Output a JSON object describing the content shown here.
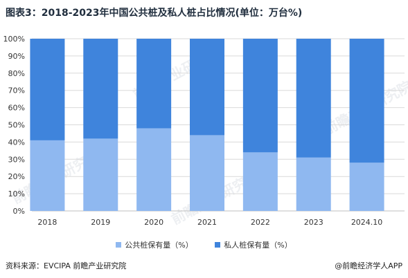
{
  "title": "图表3：2018-2023年中国公共桩及私人桩占比情况(单位：万台%)",
  "watermark_text": "前瞻产业研究院",
  "source": "资料来源：EVCIPA 前瞻产业研究院",
  "brand": "@前瞻经济学人APP",
  "colors": {
    "public": "#8fb8f0",
    "private": "#3f84dc",
    "grid": "#d9d9d9",
    "axis": "#bfbfbf",
    "text": "#333333"
  },
  "chart_data": {
    "type": "bar",
    "stacked": true,
    "categories": [
      "2018",
      "2019",
      "2020",
      "2021",
      "2022",
      "2023",
      "2024.10"
    ],
    "series": [
      {
        "name": "公共桩保有量（%）",
        "values": [
          41,
          42,
          48,
          44,
          34,
          31,
          28
        ]
      },
      {
        "name": "私人桩保有量（%）",
        "values": [
          59,
          58,
          52,
          56,
          66,
          69,
          72
        ]
      }
    ],
    "ylim": [
      0,
      100
    ],
    "yticks": [
      "0%",
      "10%",
      "20%",
      "30%",
      "40%",
      "50%",
      "60%",
      "70%",
      "80%",
      "90%",
      "100%"
    ],
    "grid": true,
    "legend_position": "bottom"
  }
}
